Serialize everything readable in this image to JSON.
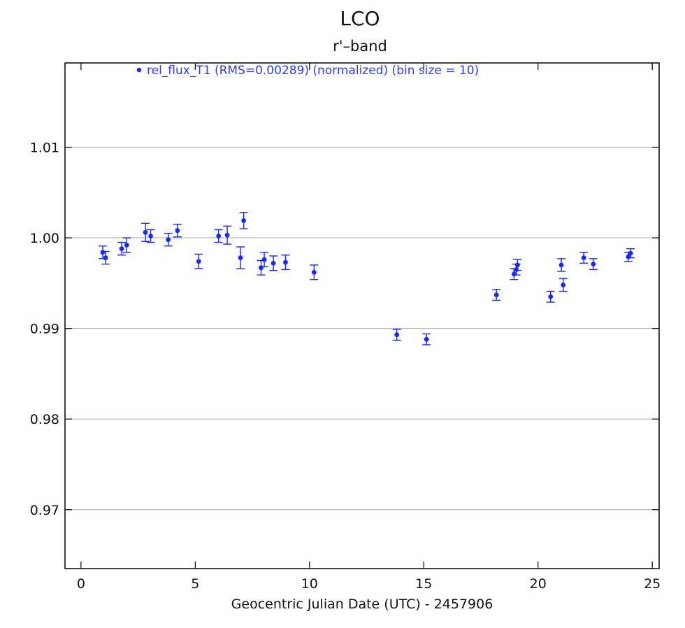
{
  "chart_data": {
    "type": "scatter",
    "title": "LCO",
    "subtitle": "r'–band",
    "xlabel": "Geocentric Julian Date (UTC) - 2457906",
    "ylabel": "",
    "xlim": [
      -0.7,
      25.3
    ],
    "ylim": [
      0.9635,
      1.0193
    ],
    "x_ticks": [
      0,
      5,
      10,
      15,
      20,
      25
    ],
    "y_ticks": [
      0.97,
      0.98,
      0.99,
      1.0,
      1.01
    ],
    "y_tick_labels": [
      "0.97",
      "0.98",
      "0.99",
      "1.00",
      "1.01"
    ],
    "grid": "horizontal",
    "legend_position": "top",
    "series": [
      {
        "name": "rel_flux_T1 (RMS=0.00289) (normalized) (bin size = 10)",
        "color": "#1428ff",
        "points": [
          {
            "x": 0.95,
            "y": 0.9984,
            "err": 0.0007
          },
          {
            "x": 1.08,
            "y": 0.9978,
            "err": 0.0007
          },
          {
            "x": 1.78,
            "y": 0.9988,
            "err": 0.0007
          },
          {
            "x": 2.0,
            "y": 0.9992,
            "err": 0.0008
          },
          {
            "x": 2.82,
            "y": 1.0006,
            "err": 0.001
          },
          {
            "x": 3.05,
            "y": 1.0002,
            "err": 0.0007
          },
          {
            "x": 3.82,
            "y": 0.9998,
            "err": 0.0007
          },
          {
            "x": 4.22,
            "y": 1.0008,
            "err": 0.0007
          },
          {
            "x": 5.15,
            "y": 0.9974,
            "err": 0.0008
          },
          {
            "x": 6.02,
            "y": 1.0002,
            "err": 0.0007
          },
          {
            "x": 6.4,
            "y": 1.0003,
            "err": 0.001
          },
          {
            "x": 6.98,
            "y": 0.9978,
            "err": 0.0012
          },
          {
            "x": 7.12,
            "y": 1.0019,
            "err": 0.0009
          },
          {
            "x": 7.88,
            "y": 0.9967,
            "err": 0.0008
          },
          {
            "x": 8.02,
            "y": 0.9976,
            "err": 0.0008
          },
          {
            "x": 8.42,
            "y": 0.9972,
            "err": 0.0008
          },
          {
            "x": 8.95,
            "y": 0.9973,
            "err": 0.0008
          },
          {
            "x": 10.2,
            "y": 0.9962,
            "err": 0.0008
          },
          {
            "x": 13.82,
            "y": 0.9893,
            "err": 0.0006
          },
          {
            "x": 15.12,
            "y": 0.9888,
            "err": 0.0006
          },
          {
            "x": 18.18,
            "y": 0.9937,
            "err": 0.0006
          },
          {
            "x": 18.95,
            "y": 0.996,
            "err": 0.0006
          },
          {
            "x": 19.05,
            "y": 0.9965,
            "err": 0.0006
          },
          {
            "x": 19.1,
            "y": 0.997,
            "err": 0.0006
          },
          {
            "x": 20.55,
            "y": 0.9935,
            "err": 0.0006
          },
          {
            "x": 21.02,
            "y": 0.997,
            "err": 0.0007
          },
          {
            "x": 21.1,
            "y": 0.9948,
            "err": 0.0007
          },
          {
            "x": 22.0,
            "y": 0.9978,
            "err": 0.0006
          },
          {
            "x": 22.42,
            "y": 0.9971,
            "err": 0.0006
          },
          {
            "x": 23.95,
            "y": 0.9979,
            "err": 0.0005
          },
          {
            "x": 24.05,
            "y": 0.9983,
            "err": 0.0005
          }
        ]
      }
    ]
  }
}
